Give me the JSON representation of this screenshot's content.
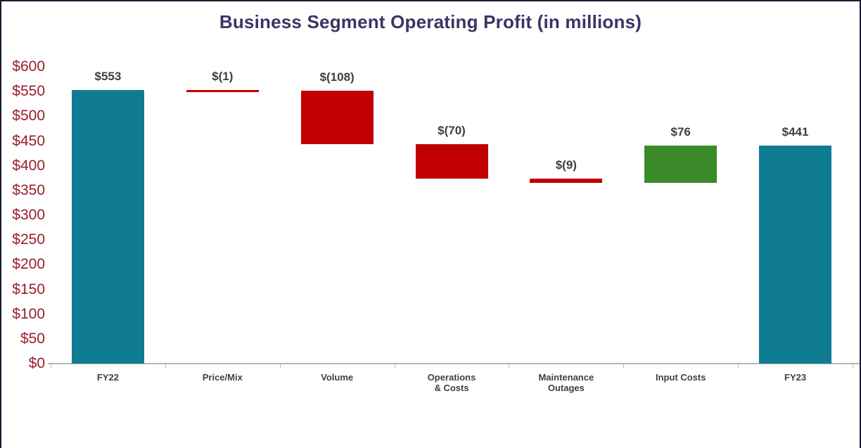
{
  "chart_data": {
    "type": "bar",
    "subtype": "waterfall",
    "title": "Business Segment Operating Profit (in millions)",
    "xlabel": "",
    "ylabel": "",
    "ylim": [
      0,
      600
    ],
    "grid": false,
    "legend": null,
    "colors": {
      "total": "#0F7C94",
      "decrease": "#C00000",
      "increase": "#3A8A2A",
      "title": "#3A3563",
      "axis_labels": "#9A1D2E",
      "data_labels": "#3F3F3F"
    },
    "y_ticks": [
      {
        "value": 0,
        "label": "$0"
      },
      {
        "value": 50,
        "label": "$50"
      },
      {
        "value": 100,
        "label": "$100"
      },
      {
        "value": 150,
        "label": "$150"
      },
      {
        "value": 200,
        "label": "$200"
      },
      {
        "value": 250,
        "label": "$250"
      },
      {
        "value": 300,
        "label": "$300"
      },
      {
        "value": 350,
        "label": "$350"
      },
      {
        "value": 400,
        "label": "$400"
      },
      {
        "value": 450,
        "label": "$450"
      },
      {
        "value": 500,
        "label": "$500"
      },
      {
        "value": 550,
        "label": "$550"
      },
      {
        "value": 600,
        "label": "$600"
      }
    ],
    "categories": [
      "FY22",
      "Price/Mix",
      "Volume",
      "Operations\n& Costs",
      "Maintenance\nOutages",
      "Input Costs",
      "FY23"
    ],
    "series": [
      {
        "name": "Operating Profit change",
        "values": [
          553,
          -1,
          -108,
          -70,
          -9,
          76,
          441
        ]
      }
    ],
    "bars": [
      {
        "id": "fy22",
        "category": "FY22",
        "value": 553,
        "value_label": "$553",
        "start": 0,
        "end": 553,
        "role": "total"
      },
      {
        "id": "price-mix",
        "category": "Price/Mix",
        "value": -1,
        "value_label": "$(1)",
        "start": 553,
        "end": 552,
        "role": "decrease"
      },
      {
        "id": "volume",
        "category": "Volume",
        "value": -108,
        "value_label": "$(108)",
        "start": 552,
        "end": 444,
        "role": "decrease"
      },
      {
        "id": "operations-costs",
        "category": "Operations\n& Costs",
        "value": -70,
        "value_label": "$(70)",
        "start": 444,
        "end": 374,
        "role": "decrease"
      },
      {
        "id": "maintenance-outages",
        "category": "Maintenance\nOutages",
        "value": -9,
        "value_label": "$(9)",
        "start": 374,
        "end": 365,
        "role": "decrease"
      },
      {
        "id": "input-costs",
        "category": "Input Costs",
        "value": 76,
        "value_label": "$76",
        "start": 365,
        "end": 441,
        "role": "increase"
      },
      {
        "id": "fy23",
        "category": "FY23",
        "value": 441,
        "value_label": "$441",
        "start": 0,
        "end": 441,
        "role": "total"
      }
    ]
  }
}
